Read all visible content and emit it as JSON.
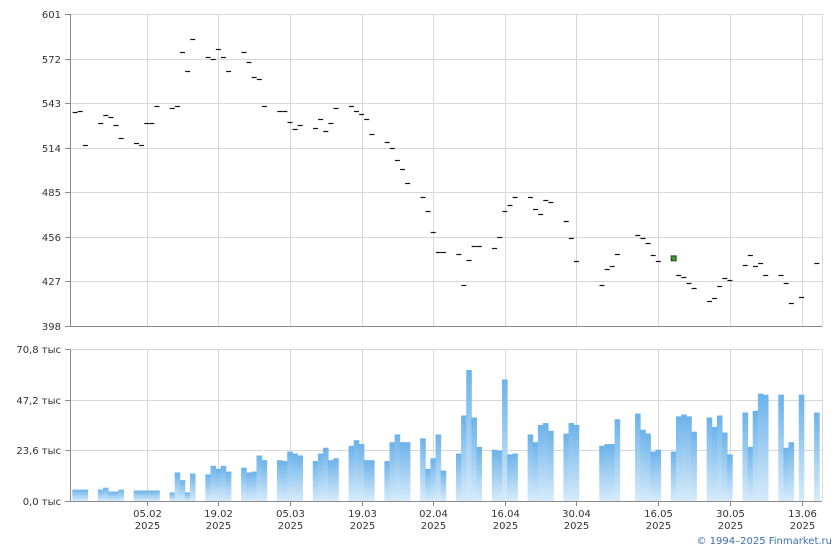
{
  "credit": "© 1994–2025 Finmarket.ru",
  "chart_data": [
    {
      "type": "scatter",
      "marker": "horizontal-tick",
      "ylim": [
        398,
        601
      ],
      "yticks": [
        "601",
        "572",
        "543",
        "514",
        "485",
        "456",
        "427",
        "398"
      ],
      "grid": true,
      "highlight_color": "#3c9a2e",
      "x": [
        "2025-01-22",
        "2025-01-23",
        "2025-01-24",
        "2025-01-27",
        "2025-01-28",
        "2025-01-29",
        "2025-01-30",
        "2025-01-31",
        "2025-02-03",
        "2025-02-04",
        "2025-02-05",
        "2025-02-06",
        "2025-02-07",
        "2025-02-10",
        "2025-02-11",
        "2025-02-12",
        "2025-02-13",
        "2025-02-14",
        "2025-02-17",
        "2025-02-18",
        "2025-02-19",
        "2025-02-20",
        "2025-02-21",
        "2025-02-24",
        "2025-02-25",
        "2025-02-26",
        "2025-02-27",
        "2025-02-28",
        "2025-03-03",
        "2025-03-04",
        "2025-03-05",
        "2025-03-06",
        "2025-03-07",
        "2025-03-10",
        "2025-03-11",
        "2025-03-12",
        "2025-03-13",
        "2025-03-14",
        "2025-03-17",
        "2025-03-18",
        "2025-03-19",
        "2025-03-20",
        "2025-03-21",
        "2025-03-24",
        "2025-03-25",
        "2025-03-26",
        "2025-03-27",
        "2025-03-28",
        "2025-03-31",
        "2025-04-01",
        "2025-04-02",
        "2025-04-03",
        "2025-04-04",
        "2025-04-07",
        "2025-04-08",
        "2025-04-09",
        "2025-04-10",
        "2025-04-11",
        "2025-04-14",
        "2025-04-15",
        "2025-04-16",
        "2025-04-17",
        "2025-04-18",
        "2025-04-21",
        "2025-04-22",
        "2025-04-23",
        "2025-04-24",
        "2025-04-25",
        "2025-04-28",
        "2025-04-29",
        "2025-04-30",
        "2025-05-05",
        "2025-05-06",
        "2025-05-07",
        "2025-05-08",
        "2025-05-12",
        "2025-05-13",
        "2025-05-14",
        "2025-05-15",
        "2025-05-16",
        "2025-05-19",
        "2025-05-20",
        "2025-05-21",
        "2025-05-22",
        "2025-05-23",
        "2025-05-26",
        "2025-05-27",
        "2025-05-28",
        "2025-05-29",
        "2025-05-30",
        "2025-06-02",
        "2025-06-03",
        "2025-06-04",
        "2025-06-05",
        "2025-06-06",
        "2025-06-09",
        "2025-06-10",
        "2025-06-11",
        "2025-06-13",
        "2025-06-16"
      ],
      "series": [
        {
          "values": [
            537,
            538,
            516,
            530,
            535,
            534,
            529,
            520,
            517,
            516,
            530,
            530,
            541,
            540,
            541,
            576,
            564,
            585,
            573,
            572,
            578,
            573,
            564,
            576,
            570,
            560,
            559,
            541,
            538,
            538,
            531,
            526,
            529,
            527,
            533,
            525,
            530,
            540,
            541,
            538,
            536,
            533,
            523,
            518,
            514,
            506,
            500,
            491,
            482,
            473,
            459,
            446,
            446,
            445,
            425,
            441,
            450,
            450,
            449,
            456,
            473,
            477,
            482,
            482,
            474,
            471,
            480,
            479,
            466,
            455,
            440,
            425,
            435,
            437,
            445,
            457,
            455,
            452,
            444,
            440,
            442,
            431,
            430,
            426,
            423,
            414,
            416,
            424,
            429,
            428,
            438,
            444,
            437,
            439,
            431,
            431,
            426,
            413,
            417,
            439
          ]
        }
      ],
      "highlight_index": 80
    },
    {
      "type": "bar",
      "ylim": [
        0,
        70.8
      ],
      "yticks": [
        "70,8 тыс",
        "47,2 тыс",
        "23,6 тыс",
        "0,0 тыс"
      ],
      "grid": true,
      "bar_color_top": "#6cb2ea",
      "bar_color_bottom": "#d6ebfa",
      "xticks": [
        {
          "date": "2025-02-05",
          "day": "05.02",
          "year": "2025"
        },
        {
          "date": "2025-02-19",
          "day": "19.02",
          "year": "2025"
        },
        {
          "date": "2025-03-05",
          "day": "05.03",
          "year": "2025"
        },
        {
          "date": "2025-03-19",
          "day": "19.03",
          "year": "2025"
        },
        {
          "date": "2025-04-02",
          "day": "02.04",
          "year": "2025"
        },
        {
          "date": "2025-04-16",
          "day": "16.04",
          "year": "2025"
        },
        {
          "date": "2025-04-30",
          "day": "30.04",
          "year": "2025"
        },
        {
          "date": "2025-05-16",
          "day": "16.05",
          "year": "2025"
        },
        {
          "date": "2025-05-30",
          "day": "30.05",
          "year": "2025"
        },
        {
          "date": "2025-06-13",
          "day": "13.06",
          "year": "2025"
        }
      ],
      "values": [
        5.3,
        5.3,
        5.3,
        5.3,
        6.2,
        4.4,
        4.4,
        5.3,
        4.9,
        4.9,
        4.9,
        4.9,
        4.9,
        4.0,
        13.3,
        9.7,
        4.0,
        12.8,
        12.4,
        16.4,
        15.0,
        16.4,
        13.7,
        15.5,
        13.3,
        13.7,
        21.2,
        19.0,
        19.0,
        18.6,
        23.0,
        22.1,
        21.2,
        18.6,
        22.1,
        24.8,
        19.0,
        19.9,
        25.7,
        28.3,
        26.5,
        19.0,
        19.0,
        18.6,
        27.4,
        31.0,
        27.4,
        27.4,
        29.2,
        15.0,
        19.9,
        31.0,
        14.2,
        22.1,
        39.8,
        61.0,
        38.9,
        25.2,
        23.9,
        23.5,
        56.6,
        21.7,
        22.1,
        31.0,
        27.4,
        35.4,
        36.3,
        32.7,
        31.4,
        36.3,
        35.4,
        25.7,
        26.5,
        26.5,
        38.1,
        40.7,
        33.2,
        31.4,
        23.0,
        23.9,
        23.0,
        39.4,
        40.3,
        39.4,
        32.3,
        38.9,
        34.5,
        39.8,
        31.9,
        21.7,
        41.2,
        25.2,
        42.0,
        50.0,
        49.5,
        49.5,
        24.8,
        27.4,
        49.5,
        41.2
      ]
    }
  ]
}
